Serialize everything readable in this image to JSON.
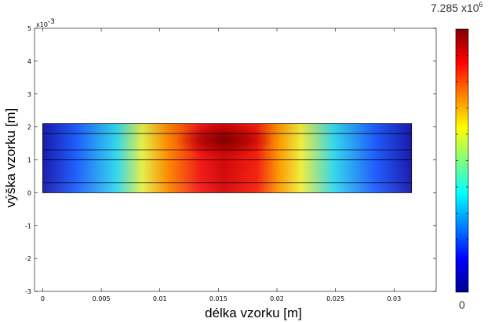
{
  "chart_data": {
    "type": "heatmap",
    "xlabel": "délka vzorku [m]",
    "ylabel": "výška vzorku [m]",
    "x_ticks": [
      "0",
      "0.005",
      "0.01",
      "0.015",
      "0.02",
      "0.025",
      "0.03"
    ],
    "y_ticks": [
      "5",
      "4",
      "3",
      "2",
      "1",
      "0",
      "-1",
      "-2",
      "-3"
    ],
    "y_exponent": {
      "base": "x10",
      "power": "-3"
    },
    "xlim": [
      -0.0007,
      0.0336
    ],
    "ylim": [
      -0.003,
      0.005
    ],
    "sample": {
      "x": [
        0,
        0.0315
      ],
      "y": [
        0,
        0.0021
      ]
    },
    "layer_boundaries_y": [
      0.0003,
      0.001,
      0.0013,
      0.0018
    ],
    "colormap": "jet",
    "peak": {
      "x": 0.0155,
      "y": 0.0016
    },
    "colorbar": {
      "max_label": {
        "mantissa": "7.285",
        "times": "x",
        "base": "10",
        "power": "6"
      },
      "min_label": "0",
      "range": [
        0,
        7285000
      ]
    },
    "grid": false
  }
}
